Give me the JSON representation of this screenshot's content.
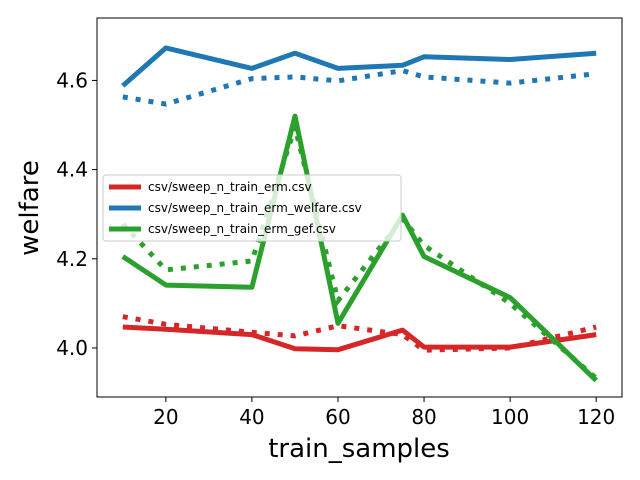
{
  "chart_data": {
    "type": "line",
    "xlabel": "train_samples",
    "ylabel": "welfare",
    "xlim": [
      4,
      126
    ],
    "ylim": [
      3.89,
      4.74
    ],
    "xticks": [
      20,
      40,
      60,
      80,
      100,
      120
    ],
    "yticks": [
      4.0,
      4.2,
      4.4,
      4.6
    ],
    "x": [
      10,
      20,
      40,
      50,
      60,
      75,
      80,
      100,
      120
    ],
    "legend_position": "center-left",
    "grid": false,
    "series": [
      {
        "name": "csv/sweep_n_train_erm.csv",
        "color": "#d62728",
        "solid": [
          4.047,
          4.042,
          4.03,
          3.998,
          3.996,
          4.04,
          4.002,
          4.002,
          4.03
        ],
        "dotted": [
          4.07,
          4.053,
          4.035,
          4.027,
          4.05,
          4.03,
          3.995,
          4.0,
          4.047
        ]
      },
      {
        "name": "csv/sweep_n_train_erm_welfare.csv",
        "color": "#1f77b4",
        "solid": [
          4.588,
          4.673,
          4.627,
          4.661,
          4.627,
          4.634,
          4.653,
          4.647,
          4.661
        ],
        "dotted": [
          4.563,
          4.547,
          4.604,
          4.608,
          4.599,
          4.622,
          4.608,
          4.594,
          4.615
        ]
      },
      {
        "name": "csv/sweep_n_train_erm_gef.csv",
        "color": "#2ca02c",
        "solid": [
          4.205,
          4.141,
          4.136,
          4.52,
          4.055,
          4.298,
          4.205,
          4.113,
          3.927
        ],
        "dotted": [
          4.278,
          4.175,
          4.195,
          4.495,
          4.106,
          4.29,
          4.23,
          4.1,
          3.932
        ]
      }
    ]
  }
}
